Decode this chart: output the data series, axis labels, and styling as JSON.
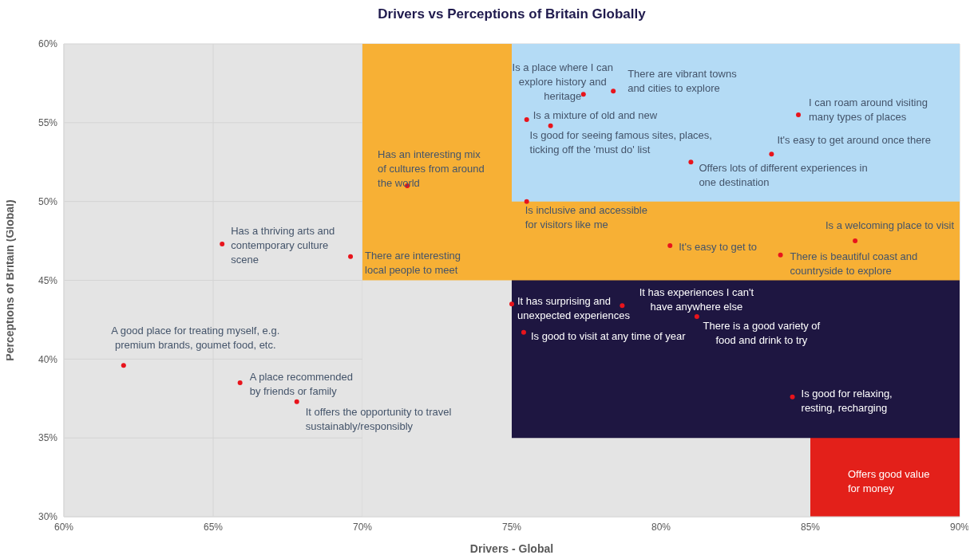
{
  "chart_data": {
    "type": "scatter",
    "title": "Drivers vs Perceptions of Britain Globally",
    "xlabel": "Drivers - Global",
    "ylabel": "Perceptions of Britain (Global)",
    "series": [
      {
        "type": "area",
        "color": "#b4dbf5",
        "x": [
          75,
          90
        ],
        "values": [
          60,
          60
        ]
      },
      {
        "type": "area",
        "color": "#f7b035",
        "x": [
          70,
          75,
          75,
          90
        ],
        "values": [
          60,
          60,
          50,
          50
        ]
      },
      {
        "type": "area",
        "color": "#e4e4e4",
        "x": [
          70,
          75
        ],
        "values": [
          45,
          45
        ]
      },
      {
        "type": "area",
        "color": "#1e1641",
        "x": [
          75,
          90
        ],
        "values": [
          45,
          45
        ]
      },
      {
        "type": "area",
        "color": "#e4e4e4",
        "x": [
          75,
          85
        ],
        "values": [
          35,
          35
        ]
      },
      {
        "type": "area",
        "color": "#e3201a",
        "x": [
          85,
          90
        ],
        "values": [
          35,
          35
        ]
      },
      {
        "color": "#e8141c",
        "marker": "circle",
        "x": [
          62.0,
          65.9,
          67.8,
          65.3,
          69.6,
          71.5,
          77.4,
          78.4,
          75.5,
          76.3,
          75.5,
          84.6,
          83.7,
          81.0,
          80.3,
          86.5,
          84.0,
          75.0,
          78.7,
          75.4,
          81.2,
          84.4
        ],
        "values": [
          39.6,
          38.5,
          37.3,
          47.3,
          46.5,
          51.0,
          56.8,
          57.0,
          55.2,
          54.8,
          50.0,
          55.5,
          53.0,
          52.5,
          47.2,
          47.5,
          46.6,
          43.5,
          43.4,
          41.7,
          42.7,
          37.6
        ],
        "value_labels": [
          "A good place for treating myself, e.g. premium brands, goumet food, etc.",
          "A place recommended by friends or family",
          "It offers the opportunity to travel sustainably/responsibly",
          "Has a thriving arts and contemporary culture scene",
          "There are interesting local people to meet",
          "Has an interesting mix of cultures from around the world",
          "Is a place where I can explore history and heritage",
          "There are vibrant towns and cities to explore",
          "Is a mixture of old and new",
          "Is good for seeing famous sites, places, ticking off the 'must do' list",
          "Is inclusive and accessible for visitors like me",
          "I can roam around visiting many types of places",
          "It's easy to get around once there",
          "Offers lots of different experiences in one destination",
          "It's easy to get to",
          "Is a welcoming place to visit",
          "There is beautiful coast and countryside to explore",
          "It has surprising and unexpected experiences",
          "It has experiences I can't have anywhere else",
          "Is good to visit at any time of year",
          "There is a good variety of food and drink to try",
          "Is good for relaxing, resting, recharging"
        ]
      }
    ],
    "annotations": [
      "Offers good value for money"
    ],
    "xlim": [
      60,
      90
    ],
    "ylim": [
      30,
      60
    ],
    "xticks": [
      {
        "value": 60,
        "label": "60%"
      },
      {
        "value": 65,
        "label": "65%"
      },
      {
        "value": 70,
        "label": "70%"
      },
      {
        "value": 75,
        "label": "75%"
      },
      {
        "value": 80,
        "label": "80%"
      },
      {
        "value": 85,
        "label": "85%"
      },
      {
        "value": 90,
        "label": "90%"
      }
    ],
    "yticks": [
      {
        "value": 30,
        "label": "30%"
      },
      {
        "value": 35,
        "label": "35%"
      },
      {
        "value": 40,
        "label": "40%"
      },
      {
        "value": 45,
        "label": "45%"
      },
      {
        "value": 50,
        "label": "50%"
      },
      {
        "value": 55,
        "label": "55%"
      },
      {
        "value": 60,
        "label": "60%"
      }
    ],
    "grid": true
  }
}
